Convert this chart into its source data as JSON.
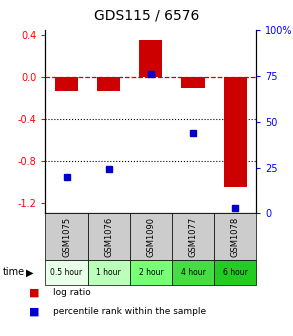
{
  "title": "GDS115 / 6576",
  "samples": [
    "GSM1075",
    "GSM1076",
    "GSM1090",
    "GSM1077",
    "GSM1078"
  ],
  "time_labels": [
    "0.5 hour",
    "1 hour",
    "2 hour",
    "4 hour",
    "6 hour"
  ],
  "log_ratios": [
    -0.13,
    -0.13,
    0.36,
    -0.1,
    -1.05
  ],
  "percentile_ranks": [
    20,
    24,
    76,
    44,
    3
  ],
  "bar_color": "#cc0000",
  "point_color": "#0000cc",
  "ylim_left": [
    -1.3,
    0.45
  ],
  "ylim_right": [
    0,
    100
  ],
  "yticks_left": [
    0.4,
    0.0,
    -0.4,
    -0.8,
    -1.2
  ],
  "yticks_right": [
    100,
    75,
    50,
    25,
    0
  ],
  "dotted_lines": [
    -0.4,
    -0.8
  ],
  "bar_width": 0.55,
  "sample_box_color": "#cccccc",
  "time_box_colors": [
    "#e8ffe8",
    "#bbffbb",
    "#77ff77",
    "#44dd44",
    "#22cc22"
  ],
  "legend_log_label": "log ratio",
  "legend_pct_label": "percentile rank within the sample"
}
